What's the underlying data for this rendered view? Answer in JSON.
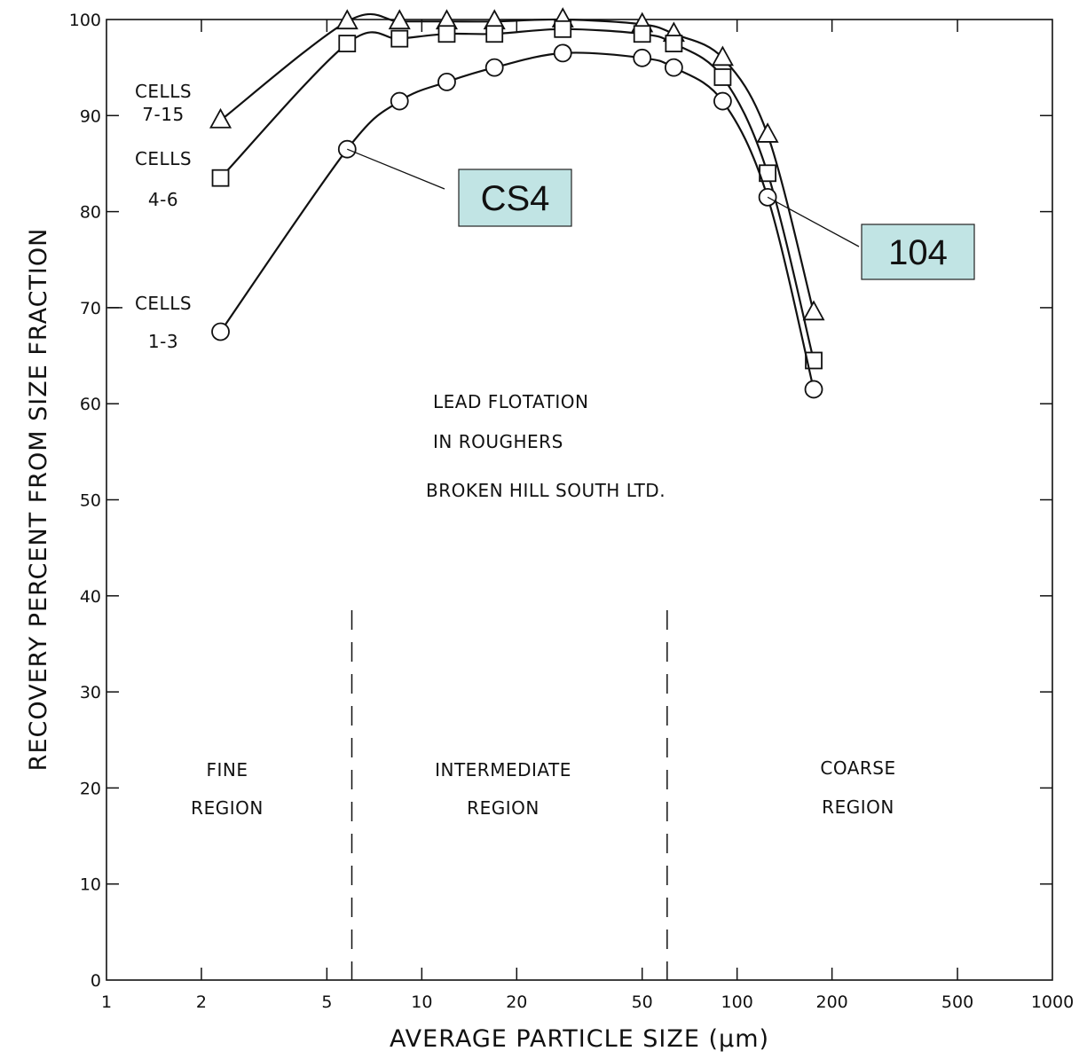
{
  "chart_data": {
    "type": "line",
    "title": "",
    "xlabel": "AVERAGE PARTICLE SIZE (µm)",
    "ylabel": "RECOVERY PERCENT FROM SIZE FRACTION",
    "x_scale": "log",
    "xlim": [
      1,
      1000
    ],
    "ylim": [
      0,
      100
    ],
    "x_ticks": [
      1,
      2,
      5,
      10,
      20,
      50,
      100,
      200,
      500,
      1000
    ],
    "x_tick_labels": [
      "1",
      "2",
      "5",
      "10",
      "20",
      "50",
      "100",
      "200",
      "500",
      "1000"
    ],
    "y_ticks": [
      0,
      10,
      20,
      30,
      40,
      50,
      60,
      70,
      80,
      90,
      100
    ],
    "y_tick_labels": [
      "0",
      "10",
      "20",
      "30",
      "40",
      "50",
      "60",
      "70",
      "80",
      "90",
      "100"
    ],
    "grid": false,
    "series": [
      {
        "name": "CELLS 7-15",
        "marker": "triangle",
        "x": [
          2.3,
          5.8,
          8.5,
          12,
          17,
          28,
          50,
          63,
          90,
          125,
          175
        ],
        "y": [
          89.5,
          99.8,
          99.8,
          99.8,
          99.8,
          100,
          99.5,
          98.5,
          96,
          88,
          69.5
        ]
      },
      {
        "name": "CELLS 4-6",
        "marker": "square",
        "x": [
          2.3,
          5.8,
          8.5,
          12,
          17,
          28,
          50,
          63,
          90,
          125,
          175
        ],
        "y": [
          83.5,
          97.5,
          98,
          98.5,
          98.5,
          99,
          98.5,
          97.5,
          94,
          84,
          64.5
        ]
      },
      {
        "name": "CELLS 1-3",
        "marker": "circle",
        "x": [
          2.3,
          5.8,
          8.5,
          12,
          17,
          28,
          50,
          63,
          90,
          125,
          175
        ],
        "y": [
          67.5,
          86.5,
          91.5,
          93.5,
          95,
          96.5,
          96,
          95,
          91.5,
          81.5,
          61.5
        ]
      }
    ],
    "series_labels": [
      {
        "line1": "CELLS",
        "line2": "7-15"
      },
      {
        "line1": "CELLS",
        "line2": "4-6"
      },
      {
        "line1": "CELLS",
        "line2": "1-3"
      }
    ],
    "annotations": {
      "title_block": [
        "LEAD FLOTATION",
        "IN ROUGHERS",
        "BROKEN HILL SOUTH LTD."
      ],
      "regions": [
        {
          "line1": "FINE",
          "line2": "REGION"
        },
        {
          "line1": "INTERMEDIATE",
          "line2": "REGION"
        },
        {
          "line1": "COARSE",
          "line2": "REGION"
        }
      ],
      "region_boundaries": [
        6,
        60
      ]
    },
    "callouts": [
      {
        "label": "CS4",
        "x": 5.8,
        "y": 86.5
      },
      {
        "label": "104",
        "x": 125,
        "y": 81.5
      }
    ],
    "colors": {
      "line": "#111111",
      "callout_fill": "#c1e4e4",
      "callout_border": "#222222"
    }
  }
}
